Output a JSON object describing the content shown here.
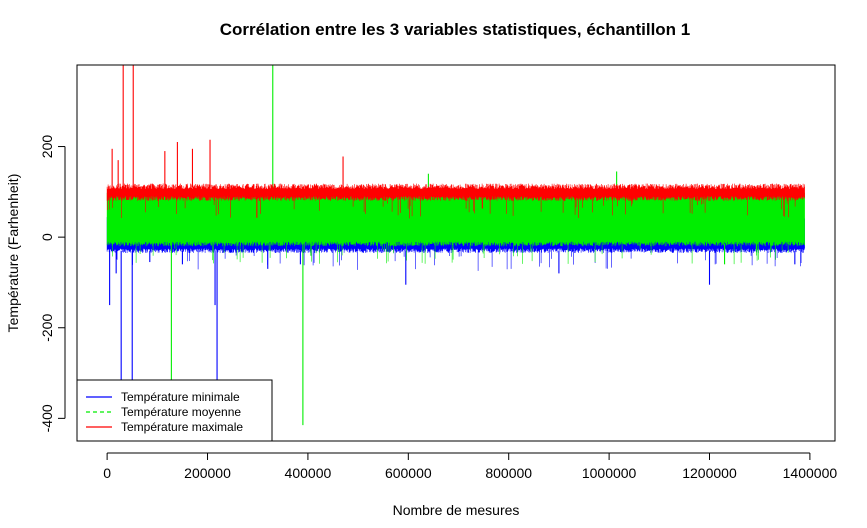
{
  "chart_data": {
    "type": "line",
    "title": "Corrélation entre les 3 variables statistiques, échantillon 1",
    "xlabel": "Nombre de mesures",
    "ylabel": "Température (Farhenheit)",
    "xlim": [
      -60000,
      1450000
    ],
    "ylim": [
      -450,
      380
    ],
    "x_ticks": [
      0,
      200000,
      400000,
      600000,
      800000,
      1000000,
      1200000,
      1400000
    ],
    "y_ticks": [
      -400,
      -200,
      0,
      200
    ],
    "data_x_range": [
      0,
      1390000
    ],
    "legend_position": "bottom-left",
    "series": [
      {
        "name": "Température minimale",
        "color": "#0000ff",
        "line_style": "solid",
        "baseline_low": -30,
        "baseline_high": 40,
        "spikes": [
          [
            5000,
            -150
          ],
          [
            18000,
            -80
          ],
          [
            28000,
            -380
          ],
          [
            50000,
            -380
          ],
          [
            85000,
            -55
          ],
          [
            150000,
            -60
          ],
          [
            215000,
            -150
          ],
          [
            219000,
            -380
          ],
          [
            320000,
            -70
          ],
          [
            385000,
            -60
          ],
          [
            595000,
            -105
          ],
          [
            900000,
            -80
          ],
          [
            1200000,
            -105
          ],
          [
            1370000,
            -60
          ]
        ]
      },
      {
        "name": "Température moyenne",
        "color": "#00ee00",
        "line_style": "dashed",
        "baseline_low": -15,
        "baseline_high": 95,
        "spikes": [
          [
            128000,
            -320
          ],
          [
            330000,
            380
          ],
          [
            390000,
            -415
          ],
          [
            640000,
            140
          ],
          [
            1015000,
            145
          ],
          [
            1230000,
            -60
          ]
        ]
      },
      {
        "name": "Température maximale",
        "color": "#ff0000",
        "line_style": "solid",
        "baseline_low": 85,
        "baseline_high": 110,
        "spikes": [
          [
            10000,
            195
          ],
          [
            22000,
            170
          ],
          [
            32000,
            380
          ],
          [
            52000,
            380
          ],
          [
            115000,
            190
          ],
          [
            140000,
            210
          ],
          [
            170000,
            195
          ],
          [
            205000,
            215
          ],
          [
            470000,
            178
          ]
        ]
      }
    ]
  }
}
